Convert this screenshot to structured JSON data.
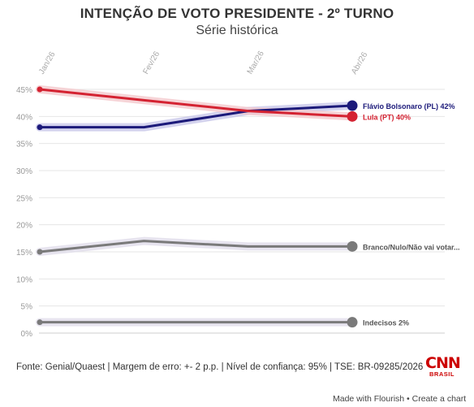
{
  "header": {
    "title": "INTENÇÃO DE VOTO PRESIDENTE - 2º TURNO",
    "subtitle": "Série histórica"
  },
  "chart_data": {
    "type": "line",
    "categories": [
      "Jan/26",
      "Fev/26",
      "Mar/26",
      "Abr/26"
    ],
    "ylim": [
      0,
      45
    ],
    "yticks": [
      0,
      5,
      10,
      15,
      20,
      25,
      30,
      35,
      40,
      45
    ],
    "ytick_suffix": "%",
    "grid": true,
    "series": [
      {
        "name": "Flávio Bolsonaro (PL)",
        "label": "Flávio Bolsonaro (PL) 42%",
        "values": [
          38,
          38,
          41,
          42
        ],
        "color": "#1c1a7a",
        "band_color": "#c9c8ea"
      },
      {
        "name": "Lula (PT)",
        "label": "Lula (PT) 40%",
        "values": [
          45,
          43,
          41,
          40
        ],
        "color": "#d42332",
        "band_color": "#f4c9cd"
      },
      {
        "name": "Branco/Nulo/Não vai votar",
        "label": "Branco/Nulo/Não vai votar...",
        "values": [
          15,
          17,
          16,
          16
        ],
        "color": "#7a7a7a",
        "band_color": "#e1ddeb"
      },
      {
        "name": "Indecisos",
        "label": "Indecisos 2%",
        "values": [
          2,
          2,
          2,
          2
        ],
        "color": "#7a7a7a",
        "band_color": "#e1ddeb"
      }
    ]
  },
  "footer": {
    "source": "Fonte: Genial/Quaest | Margem de erro: +- 2 p.p. | Nível de confiança: 95% | TSE: BR-09285/2026",
    "logo_text": "CNN",
    "logo_sub": "BRASIL",
    "made_with": "Made with Flourish • Create a chart"
  }
}
